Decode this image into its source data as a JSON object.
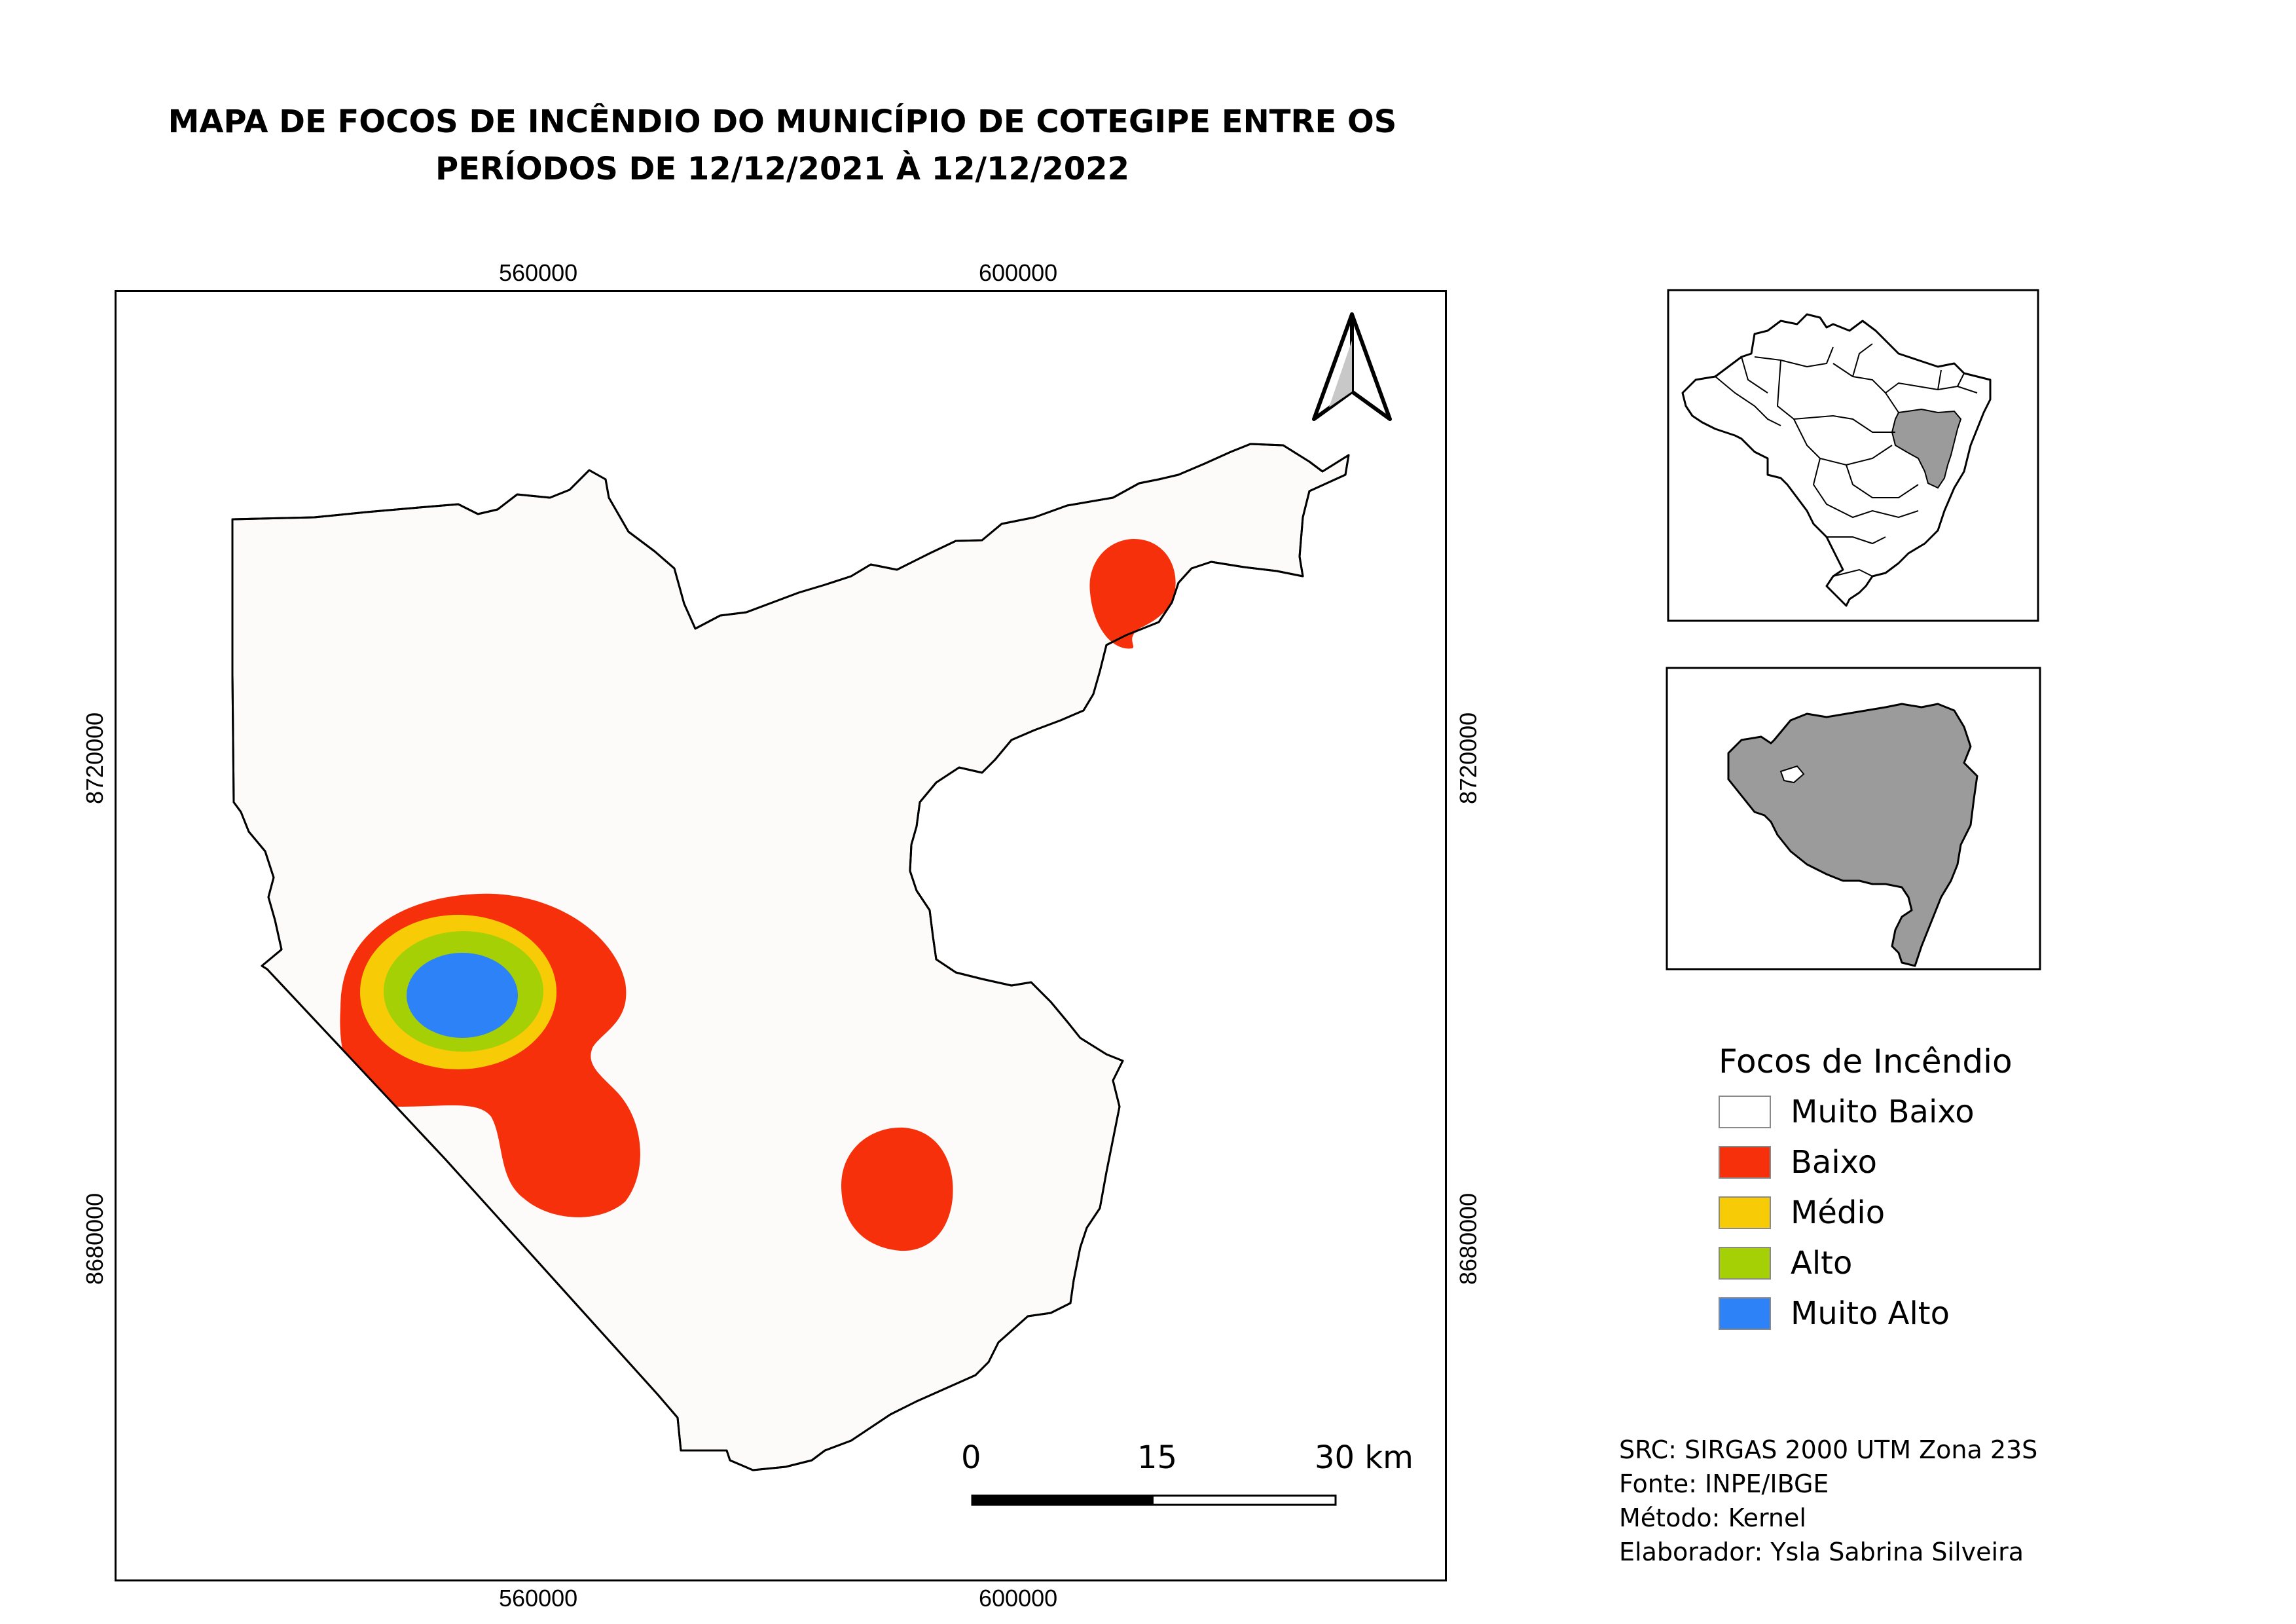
{
  "title": {
    "line1": "MAPA DE FOCOS DE INCÊNDIO DO MUNICÍPIO DE COTEGIPE ENTRE OS",
    "line2": "PERÍODOS DE 12/12/2021 À 12/12/2022"
  },
  "grid": {
    "easting_top": [
      "560000",
      "600000"
    ],
    "easting_bottom": [
      "560000",
      "600000"
    ],
    "northing_left": [
      "8720000",
      "8680000"
    ],
    "northing_right": [
      "8720000",
      "8680000"
    ]
  },
  "legend": {
    "title": "Focos de Incêndio",
    "items": [
      {
        "label": "Muito Baixo",
        "color": "#ffffff"
      },
      {
        "label": "Baixo",
        "color": "#f7300c"
      },
      {
        "label": "Médio",
        "color": "#f7cc06"
      },
      {
        "label": "Alto",
        "color": "#a4d005"
      },
      {
        "label": "Muito Alto",
        "color": "#2d82f8"
      }
    ]
  },
  "scalebar": {
    "labels": [
      "0",
      "15",
      "30 km"
    ]
  },
  "credits": {
    "src": "SRC: SIRGAS 2000 UTM Zona 23S",
    "fonte": "Fonte: INPE/IBGE",
    "metodo": "Método: Kernel",
    "elaborador": "Elaborador: Ysla Sabrina Silveira"
  },
  "colors": {
    "municipality_fill": "#fcfbfa",
    "state_fill": "#9b9b9b",
    "bahia_highlight": "#9b9b9b"
  },
  "icons": {
    "north_arrow": "north-arrow-icon"
  }
}
